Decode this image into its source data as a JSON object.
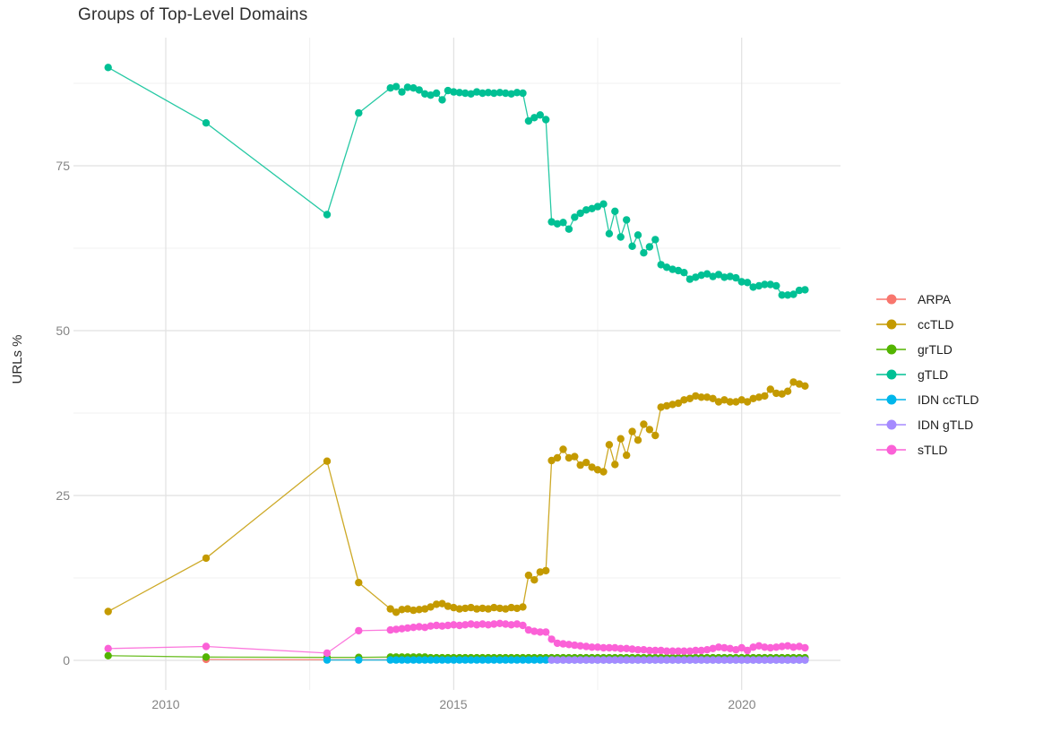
{
  "title": "Groups of Top-Level Domains",
  "axes": {
    "y_title": "URLs %",
    "y_tick_labels": [
      "0",
      "25",
      "50",
      "75"
    ],
    "x_tick_labels": [
      "2010",
      "2015",
      "2020"
    ]
  },
  "colors": {
    "grid_major": "#e1e1e1",
    "grid_minor": "#f0f0f0",
    "tick_text": "#848484"
  },
  "legend": {
    "items": [
      {
        "label": "ARPA",
        "color": "#F8766D"
      },
      {
        "label": "ccTLD",
        "color": "#C49A00"
      },
      {
        "label": "grTLD",
        "color": "#53B400"
      },
      {
        "label": "gTLD",
        "color": "#00C094"
      },
      {
        "label": "IDN ccTLD",
        "color": "#00B6EB"
      },
      {
        "label": "IDN gTLD",
        "color": "#A58AFF"
      },
      {
        "label": "sTLD",
        "color": "#FB61D7"
      }
    ]
  },
  "chart_data": {
    "type": "line",
    "title": "Groups of Top-Level Domains",
    "xlabel": "",
    "ylabel": "URLs %",
    "legend_position": "right",
    "grid": true,
    "x_axis": {
      "ticks": [
        2010,
        2015,
        2020
      ],
      "minor_ticks": [
        2012.5,
        2017.5
      ],
      "range": [
        2008.4,
        2021.7
      ]
    },
    "y_axis": {
      "ticks": [
        0,
        25,
        50,
        75
      ],
      "minor_ticks": [
        12.5,
        37.5,
        62.5,
        87.5
      ],
      "range": [
        -4.7,
        93.5
      ]
    },
    "series": [
      {
        "name": "ARPA",
        "color": "#F8766D",
        "points": [
          [
            2010.7,
            0.15
          ],
          [
            2012.8,
            0.1
          ]
        ],
        "segments": [
          [
            2013.9,
            2021.1,
            0.1,
            0.1
          ]
        ]
      },
      {
        "name": "ccTLD",
        "color": "#C49A00",
        "points": [
          [
            2009,
            7.4
          ],
          [
            2010.7,
            15.5
          ],
          [
            2012.8,
            30.2
          ],
          [
            2013.35,
            11.8
          ],
          [
            2013.9,
            7.8
          ],
          [
            2014,
            7.3
          ],
          [
            2014.1,
            7.7
          ],
          [
            2014.2,
            7.8
          ],
          [
            2014.3,
            7.6
          ],
          [
            2014.4,
            7.7
          ],
          [
            2014.5,
            7.8
          ],
          [
            2014.6,
            8.1
          ],
          [
            2014.7,
            8.5
          ],
          [
            2014.8,
            8.6
          ],
          [
            2014.9,
            8.2
          ],
          [
            2015,
            8.0
          ],
          [
            2015.1,
            7.8
          ],
          [
            2015.2,
            7.9
          ],
          [
            2015.3,
            8.0
          ],
          [
            2015.4,
            7.8
          ],
          [
            2015.5,
            7.9
          ],
          [
            2015.6,
            7.8
          ],
          [
            2015.7,
            8.0
          ],
          [
            2015.8,
            7.9
          ],
          [
            2015.9,
            7.8
          ],
          [
            2016,
            8.0
          ],
          [
            2016.1,
            7.9
          ],
          [
            2016.2,
            8.1
          ],
          [
            2016.3,
            12.9
          ],
          [
            2016.4,
            12.2
          ],
          [
            2016.5,
            13.4
          ],
          [
            2016.6,
            13.6
          ],
          [
            2016.7,
            30.3
          ],
          [
            2016.8,
            30.7
          ],
          [
            2016.9,
            32.0
          ],
          [
            2017,
            30.7
          ],
          [
            2017.1,
            30.9
          ],
          [
            2017.2,
            29.6
          ],
          [
            2017.3,
            30.0
          ],
          [
            2017.4,
            29.3
          ],
          [
            2017.5,
            28.9
          ],
          [
            2017.6,
            28.6
          ],
          [
            2017.7,
            32.7
          ],
          [
            2017.8,
            29.7
          ],
          [
            2017.9,
            33.6
          ],
          [
            2018,
            31.1
          ],
          [
            2018.1,
            34.7
          ],
          [
            2018.2,
            33.4
          ],
          [
            2018.3,
            35.8
          ],
          [
            2018.4,
            35.0
          ],
          [
            2018.5,
            34.1
          ],
          [
            2018.6,
            38.4
          ],
          [
            2018.7,
            38.6
          ],
          [
            2018.8,
            38.8
          ],
          [
            2018.9,
            39.0
          ],
          [
            2019,
            39.5
          ],
          [
            2019.1,
            39.7
          ],
          [
            2019.2,
            40.1
          ],
          [
            2019.3,
            39.9
          ],
          [
            2019.4,
            39.9
          ],
          [
            2019.5,
            39.7
          ],
          [
            2019.6,
            39.2
          ],
          [
            2019.7,
            39.5
          ],
          [
            2019.8,
            39.2
          ],
          [
            2019.9,
            39.2
          ],
          [
            2020,
            39.5
          ],
          [
            2020.1,
            39.2
          ],
          [
            2020.2,
            39.7
          ],
          [
            2020.3,
            39.9
          ],
          [
            2020.4,
            40.1
          ],
          [
            2020.5,
            41.1
          ],
          [
            2020.6,
            40.5
          ],
          [
            2020.7,
            40.4
          ],
          [
            2020.8,
            40.8
          ],
          [
            2020.9,
            42.2
          ],
          [
            2021,
            41.9
          ],
          [
            2021.1,
            41.6
          ]
        ]
      },
      {
        "name": "grTLD",
        "color": "#53B400",
        "points": [
          [
            2009,
            0.7
          ],
          [
            2010.7,
            0.5
          ],
          [
            2012.8,
            0.45
          ],
          [
            2013.35,
            0.45
          ]
        ],
        "segments": [
          [
            2013.9,
            2014.5,
            0.1,
            0.5
          ],
          [
            2014.6,
            2021.1,
            0.1,
            0.4
          ]
        ]
      },
      {
        "name": "gTLD",
        "color": "#00C094",
        "points": [
          [
            2009,
            89.9
          ],
          [
            2010.7,
            81.5
          ],
          [
            2012.8,
            67.6
          ],
          [
            2013.35,
            83.0
          ],
          [
            2013.9,
            86.8
          ],
          [
            2014,
            87.0
          ],
          [
            2014.1,
            86.2
          ],
          [
            2014.2,
            86.9
          ],
          [
            2014.3,
            86.8
          ],
          [
            2014.4,
            86.5
          ],
          [
            2014.5,
            85.9
          ],
          [
            2014.6,
            85.7
          ],
          [
            2014.7,
            86.0
          ],
          [
            2014.8,
            85.0
          ],
          [
            2014.9,
            86.4
          ],
          [
            2015,
            86.2
          ],
          [
            2015.1,
            86.1
          ],
          [
            2015.2,
            86.0
          ],
          [
            2015.3,
            85.9
          ],
          [
            2015.4,
            86.2
          ],
          [
            2015.5,
            86.0
          ],
          [
            2015.6,
            86.1
          ],
          [
            2015.7,
            86.0
          ],
          [
            2015.8,
            86.1
          ],
          [
            2015.9,
            86.0
          ],
          [
            2016,
            85.9
          ],
          [
            2016.1,
            86.1
          ],
          [
            2016.2,
            86.0
          ],
          [
            2016.3,
            81.8
          ],
          [
            2016.4,
            82.3
          ],
          [
            2016.5,
            82.7
          ],
          [
            2016.6,
            82.0
          ],
          [
            2016.7,
            66.5
          ],
          [
            2016.8,
            66.2
          ],
          [
            2016.9,
            66.4
          ],
          [
            2017,
            65.4
          ],
          [
            2017.1,
            67.2
          ],
          [
            2017.2,
            67.8
          ],
          [
            2017.3,
            68.3
          ],
          [
            2017.4,
            68.5
          ],
          [
            2017.5,
            68.8
          ],
          [
            2017.6,
            69.2
          ],
          [
            2017.7,
            64.7
          ],
          [
            2017.8,
            68.1
          ],
          [
            2017.9,
            64.2
          ],
          [
            2018,
            66.8
          ],
          [
            2018.1,
            62.8
          ],
          [
            2018.2,
            64.5
          ],
          [
            2018.3,
            61.8
          ],
          [
            2018.4,
            62.7
          ],
          [
            2018.5,
            63.8
          ],
          [
            2018.6,
            60.0
          ],
          [
            2018.7,
            59.6
          ],
          [
            2018.8,
            59.3
          ],
          [
            2018.9,
            59.1
          ],
          [
            2019,
            58.8
          ],
          [
            2019.1,
            57.8
          ],
          [
            2019.2,
            58.1
          ],
          [
            2019.3,
            58.4
          ],
          [
            2019.4,
            58.6
          ],
          [
            2019.5,
            58.2
          ],
          [
            2019.6,
            58.5
          ],
          [
            2019.7,
            58.1
          ],
          [
            2019.8,
            58.2
          ],
          [
            2019.9,
            58.0
          ],
          [
            2020,
            57.4
          ],
          [
            2020.1,
            57.3
          ],
          [
            2020.2,
            56.6
          ],
          [
            2020.3,
            56.8
          ],
          [
            2020.4,
            57.0
          ],
          [
            2020.5,
            57.0
          ],
          [
            2020.6,
            56.8
          ],
          [
            2020.7,
            55.4
          ],
          [
            2020.8,
            55.4
          ],
          [
            2020.9,
            55.5
          ],
          [
            2021,
            56.1
          ],
          [
            2021.1,
            56.2
          ]
        ]
      },
      {
        "name": "IDN ccTLD",
        "color": "#00B6EB",
        "points": [
          [
            2012.8,
            0.05
          ],
          [
            2013.35,
            0.05
          ]
        ],
        "segments": [
          [
            2013.9,
            2021.1,
            0.1,
            0.05
          ]
        ]
      },
      {
        "name": "IDN gTLD",
        "color": "#A58AFF",
        "points": [],
        "segments": [
          [
            2016.7,
            2021.1,
            0.1,
            0.05
          ]
        ]
      },
      {
        "name": "sTLD",
        "color": "#FB61D7",
        "points": [
          [
            2009,
            1.8
          ],
          [
            2010.7,
            2.1
          ],
          [
            2012.8,
            1.1
          ],
          [
            2013.35,
            4.5
          ],
          [
            2013.9,
            4.6
          ],
          [
            2014,
            4.7
          ],
          [
            2014.1,
            4.8
          ],
          [
            2014.2,
            4.9
          ],
          [
            2014.3,
            5.0
          ],
          [
            2014.4,
            5.1
          ],
          [
            2014.5,
            5.0
          ],
          [
            2014.6,
            5.2
          ],
          [
            2014.7,
            5.3
          ],
          [
            2014.8,
            5.2
          ],
          [
            2014.9,
            5.3
          ],
          [
            2015,
            5.4
          ],
          [
            2015.1,
            5.3
          ],
          [
            2015.2,
            5.4
          ],
          [
            2015.3,
            5.5
          ],
          [
            2015.4,
            5.4
          ],
          [
            2015.5,
            5.5
          ],
          [
            2015.6,
            5.4
          ],
          [
            2015.7,
            5.5
          ],
          [
            2015.8,
            5.6
          ],
          [
            2015.9,
            5.5
          ],
          [
            2016,
            5.4
          ],
          [
            2016.1,
            5.5
          ],
          [
            2016.2,
            5.3
          ],
          [
            2016.3,
            4.6
          ],
          [
            2016.4,
            4.4
          ],
          [
            2016.5,
            4.3
          ],
          [
            2016.6,
            4.3
          ],
          [
            2016.7,
            3.2
          ],
          [
            2016.8,
            2.6
          ],
          [
            2016.9,
            2.5
          ],
          [
            2017,
            2.4
          ],
          [
            2017.1,
            2.3
          ],
          [
            2017.2,
            2.2
          ],
          [
            2017.3,
            2.1
          ],
          [
            2017.4,
            2.0
          ],
          [
            2017.5,
            2.0
          ],
          [
            2017.6,
            1.9
          ],
          [
            2017.7,
            1.9
          ],
          [
            2017.8,
            1.9
          ],
          [
            2017.9,
            1.8
          ],
          [
            2018,
            1.8
          ],
          [
            2018.1,
            1.7
          ],
          [
            2018.2,
            1.6
          ],
          [
            2018.3,
            1.6
          ],
          [
            2018.4,
            1.5
          ],
          [
            2018.5,
            1.5
          ],
          [
            2018.6,
            1.5
          ],
          [
            2018.7,
            1.4
          ],
          [
            2018.8,
            1.4
          ],
          [
            2018.9,
            1.4
          ],
          [
            2019,
            1.4
          ],
          [
            2019.1,
            1.4
          ],
          [
            2019.2,
            1.5
          ],
          [
            2019.3,
            1.5
          ],
          [
            2019.4,
            1.6
          ],
          [
            2019.5,
            1.8
          ],
          [
            2019.6,
            2.0
          ],
          [
            2019.7,
            1.9
          ],
          [
            2019.8,
            1.8
          ],
          [
            2019.9,
            1.6
          ],
          [
            2020,
            1.9
          ],
          [
            2020.1,
            1.5
          ],
          [
            2020.2,
            2.0
          ],
          [
            2020.3,
            2.2
          ],
          [
            2020.4,
            2.0
          ],
          [
            2020.5,
            1.9
          ],
          [
            2020.6,
            2.0
          ],
          [
            2020.7,
            2.1
          ],
          [
            2020.8,
            2.2
          ],
          [
            2020.9,
            2.0
          ],
          [
            2021,
            2.1
          ],
          [
            2021.1,
            1.9
          ]
        ]
      }
    ]
  }
}
